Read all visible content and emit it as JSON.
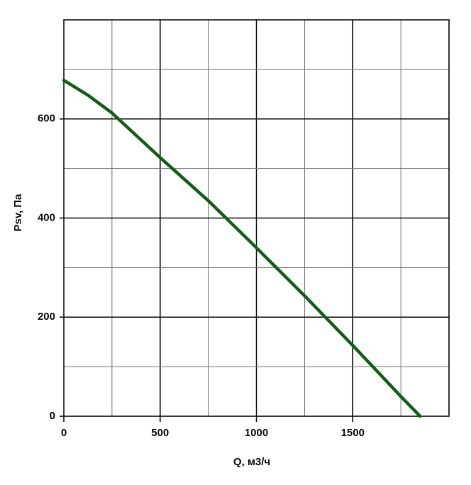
{
  "chart_data": {
    "type": "line",
    "x_label": "Q, м3/ч",
    "y_label": "Psv, Па",
    "x": [
      0,
      125,
      250,
      500,
      750,
      1000,
      1250,
      1500,
      1750,
      1800,
      1850
    ],
    "series": [
      {
        "color": "#16601a",
        "values": [
          678,
          648,
          612,
          522,
          435,
          340,
          243,
          143,
          40,
          20,
          0
        ]
      }
    ],
    "xlim": [
      0,
      2000
    ],
    "ylim": [
      0,
      800
    ],
    "xticks": [
      0,
      500,
      1000,
      1500
    ],
    "yticks": [
      0,
      200,
      400,
      600
    ],
    "xgrid": [
      250,
      500,
      750,
      1000,
      1250,
      1500,
      1750
    ],
    "ygrid": [
      100,
      200,
      300,
      400,
      500,
      600,
      700
    ],
    "grid": true
  }
}
